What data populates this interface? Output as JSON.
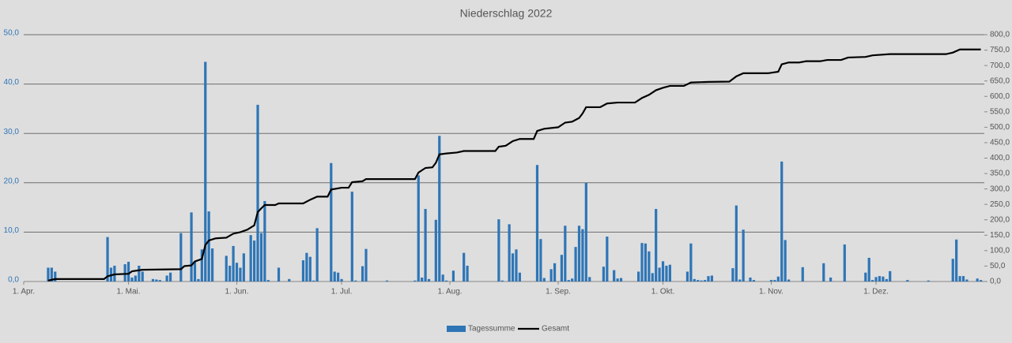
{
  "chart_data": {
    "type": "bar",
    "title": "Niederschlag 2022",
    "xlim": [
      0,
      275
    ],
    "xticks": [
      {
        "value": 0,
        "label": "1. Apr."
      },
      {
        "value": 30,
        "label": "1. Mai."
      },
      {
        "value": 61,
        "label": "1. Jun."
      },
      {
        "value": 91,
        "label": "1. Jul."
      },
      {
        "value": 122,
        "label": "1. Aug."
      },
      {
        "value": 153,
        "label": "1. Sep."
      },
      {
        "value": 183,
        "label": "1. Okt."
      },
      {
        "value": 214,
        "label": "1. Nov."
      },
      {
        "value": 244,
        "label": "1. Dez."
      }
    ],
    "ylim": [
      0,
      50
    ],
    "yticks": [
      {
        "value": 0,
        "label": "0,0"
      },
      {
        "value": 10,
        "label": "10,0"
      },
      {
        "value": 20,
        "label": "20,0"
      },
      {
        "value": 30,
        "label": "30,0"
      },
      {
        "value": 40,
        "label": "40,0"
      },
      {
        "value": 50,
        "label": "50,0"
      }
    ],
    "y2lim": [
      0,
      800
    ],
    "y2ticks": [
      {
        "value": 0,
        "label": "0,0"
      },
      {
        "value": 50,
        "label": "50,0"
      },
      {
        "value": 100,
        "label": "100,0"
      },
      {
        "value": 150,
        "label": "150,0"
      },
      {
        "value": 200,
        "label": "200,0"
      },
      {
        "value": 250,
        "label": "250,0"
      },
      {
        "value": 300,
        "label": "300,0"
      },
      {
        "value": 350,
        "label": "350,0"
      },
      {
        "value": 400,
        "label": "400,0"
      },
      {
        "value": 450,
        "label": "450,0"
      },
      {
        "value": 500,
        "label": "500,0"
      },
      {
        "value": 550,
        "label": "550,0"
      },
      {
        "value": 600,
        "label": "600,0"
      },
      {
        "value": 650,
        "label": "650,0"
      },
      {
        "value": 700,
        "label": "700,0"
      },
      {
        "value": 750,
        "label": "750,0"
      },
      {
        "value": 800,
        "label": "800,0"
      }
    ],
    "grid": true,
    "legend": "bottom",
    "series": [
      {
        "name": "Tagessumme",
        "type": "bar",
        "color": "#2e75b6",
        "x": [
          7,
          8,
          9,
          24,
          25,
          26,
          29,
          30,
          31,
          32,
          33,
          34,
          37,
          38,
          39,
          41,
          42,
          45,
          48,
          49,
          50,
          51,
          52,
          53,
          54,
          58,
          59,
          60,
          61,
          62,
          63,
          65,
          66,
          67,
          68,
          69,
          70,
          73,
          76,
          80,
          81,
          82,
          83,
          84,
          88,
          89,
          90,
          91,
          94,
          95,
          97,
          98,
          104,
          112,
          113,
          114,
          115,
          116,
          118,
          119,
          120,
          121,
          123,
          126,
          127,
          136,
          137,
          139,
          140,
          141,
          142,
          147,
          148,
          149,
          151,
          152,
          154,
          155,
          156,
          157,
          158,
          159,
          160,
          161,
          162,
          166,
          167,
          169,
          170,
          171,
          176,
          177,
          178,
          179,
          180,
          181,
          182,
          183,
          184,
          185,
          190,
          191,
          192,
          193,
          194,
          195,
          196,
          197,
          203,
          204,
          205,
          206,
          208,
          209,
          214,
          215,
          216,
          217,
          218,
          219,
          223,
          229,
          231,
          235,
          241,
          242,
          243,
          244,
          245,
          246,
          247,
          248,
          253,
          259,
          266,
          267,
          268,
          269,
          270,
          273,
          274
        ],
        "values": [
          2.8,
          2.8,
          2.0,
          9.0,
          2.8,
          3.2,
          3.5,
          4.0,
          0.8,
          1.2,
          3.2,
          2.0,
          0.5,
          0.4,
          0.3,
          1.2,
          1.8,
          9.8,
          14.0,
          4.0,
          0.5,
          6.5,
          44.5,
          14.2,
          6.7,
          5.2,
          3.2,
          7.2,
          3.8,
          2.8,
          5.7,
          9.4,
          8.3,
          35.8,
          9.8,
          16.3,
          0.3,
          2.8,
          0.5,
          4.3,
          5.8,
          5.0,
          0.2,
          10.8,
          24.0,
          2.0,
          1.8,
          0.5,
          18.2,
          0.2,
          3.1,
          6.6,
          0.2,
          0.2,
          21.5,
          0.8,
          14.7,
          0.5,
          12.5,
          29.5,
          1.4,
          0.2,
          2.2,
          5.8,
          3.2,
          12.6,
          0.2,
          11.6,
          5.7,
          6.5,
          1.8,
          23.6,
          8.6,
          0.7,
          2.5,
          3.7,
          5.4,
          11.3,
          0.3,
          0.6,
          7.0,
          11.3,
          10.6,
          20.0,
          0.9,
          3.0,
          9.1,
          2.3,
          0.6,
          0.7,
          2.0,
          7.8,
          7.7,
          6.1,
          1.7,
          14.7,
          2.8,
          4.1,
          3.2,
          3.4,
          2.0,
          7.7,
          0.5,
          0.3,
          0.2,
          0.3,
          1.1,
          1.2,
          2.7,
          15.4,
          0.4,
          10.5,
          0.8,
          0.3,
          0.3,
          0.3,
          1.0,
          24.3,
          8.4,
          0.4,
          2.9,
          3.7,
          0.8,
          7.5,
          1.8,
          4.8,
          0.3,
          0.9,
          1.1,
          1.0,
          0.5,
          2.1,
          0.3,
          0.2,
          4.6,
          8.5,
          1.1,
          1.1,
          0.4,
          0.6,
          0.3
        ]
      },
      {
        "name": "Gesamt",
        "type": "line",
        "axis": "y2",
        "color": "#000000",
        "x": [
          7,
          9,
          23,
          24,
          26,
          30,
          31,
          34,
          45,
          46,
          48,
          49,
          51,
          52,
          53,
          55,
          58,
          60,
          62,
          64,
          66,
          67,
          68,
          69,
          72,
          73,
          80,
          82,
          84,
          87,
          88,
          91,
          93,
          94,
          97,
          98,
          112,
          113,
          115,
          117,
          118,
          119,
          121,
          124,
          126,
          135,
          136,
          138,
          140,
          142,
          146,
          147,
          149,
          153,
          155,
          157,
          159,
          160,
          161,
          165,
          167,
          170,
          175,
          177,
          179,
          181,
          183,
          185,
          189,
          191,
          196,
          202,
          204,
          206,
          213,
          216,
          217,
          219,
          222,
          224,
          228,
          230,
          234,
          236,
          241,
          243,
          248,
          264,
          266,
          268,
          274
        ],
        "values": [
          3,
          8,
          8,
          17,
          23,
          25,
          33,
          38,
          40,
          50,
          52,
          65,
          73,
          118,
          133,
          140,
          142,
          155,
          160,
          168,
          182,
          225,
          237,
          248,
          248,
          253,
          253,
          265,
          275,
          275,
          298,
          304,
          304,
          322,
          325,
          332,
          332,
          353,
          368,
          370,
          385,
          412,
          415,
          418,
          423,
          423,
          437,
          440,
          455,
          462,
          462,
          488,
          495,
          500,
          515,
          518,
          530,
          545,
          565,
          565,
          577,
          580,
          580,
          595,
          605,
          620,
          628,
          634,
          634,
          645,
          647,
          648,
          665,
          675,
          675,
          680,
          704,
          710,
          710,
          714,
          714,
          718,
          718,
          726,
          728,
          733,
          737,
          737,
          742,
          752,
          752
        ]
      }
    ]
  }
}
